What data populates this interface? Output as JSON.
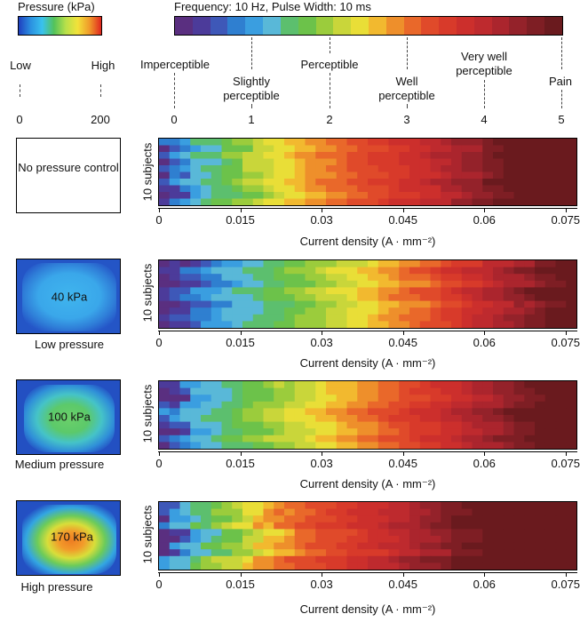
{
  "pressure_legend": {
    "title": "Pressure (kPa)",
    "low_label": "Low",
    "high_label": "High",
    "min_value": "0",
    "max_value": "200",
    "gradient": [
      "#1f3fbf",
      "#2b8fe0",
      "#39c2ee",
      "#54c25a",
      "#b8e04a",
      "#f2e23a",
      "#f09a2a",
      "#e0261f"
    ]
  },
  "perception_legend": {
    "title": "Frequency: 10 Hz, Pulse Width: 10 ms",
    "levels": [
      {
        "label": "Imperceptible",
        "value": "0"
      },
      {
        "label": "Slightly perceptible",
        "value": "1"
      },
      {
        "label": "Perceptible",
        "value": "2"
      },
      {
        "label": "Well perceptible",
        "value": "3"
      },
      {
        "label": "Very well perceptible",
        "value": "4"
      },
      {
        "label": "Pain",
        "value": "5"
      }
    ],
    "scale_colors": [
      "#5a2f80",
      "#4c3b9a",
      "#3e58b8",
      "#2f7fd0",
      "#3a9ee0",
      "#59b8d8",
      "#5cbf6e",
      "#6cc24a",
      "#9bcc3c",
      "#c9d63a",
      "#e9de37",
      "#f2b92f",
      "#ee8f2b",
      "#e9682a",
      "#e04a2a",
      "#d83a2a",
      "#cc2f2c",
      "#be2a2e",
      "#ab252d",
      "#94222a",
      "#7e1e24",
      "#6a1a1e"
    ]
  },
  "panels": [
    {
      "condition_label": "No pressure control",
      "pressure_value": null
    },
    {
      "condition_label": "Low pressure",
      "pressure_value": "40 kPa"
    },
    {
      "condition_label": "Medium pressure",
      "pressure_value": "100 kPa"
    },
    {
      "condition_label": "High pressure",
      "pressure_value": "170 kPa"
    }
  ],
  "chart_data": [
    {
      "type": "heatmap",
      "title": "No pressure control",
      "xlabel": "Current density (A · mm⁻²)",
      "ylabel": "10 subjects",
      "x_ticks": [
        "0",
        "0.015",
        "0.03",
        "0.045",
        "0.06",
        "0.075"
      ],
      "xlim": [
        0,
        0.077
      ],
      "rows": 10,
      "perception_thresholds_per_level": {
        "1": 0.006,
        "2": 0.018,
        "3": 0.032,
        "4": 0.052,
        "5": 0.065
      }
    },
    {
      "type": "heatmap",
      "title": "Low pressure",
      "xlabel": "Current density (A · mm⁻²)",
      "ylabel": "10 subjects",
      "x_ticks": [
        "0",
        "0.015",
        "0.03",
        "0.045",
        "0.06",
        "0.075"
      ],
      "xlim": [
        0,
        0.077
      ],
      "rows": 10,
      "perception_thresholds_per_level": {
        "1": 0.011,
        "2": 0.03,
        "3": 0.046,
        "4": 0.06,
        "5": 0.073
      }
    },
    {
      "type": "heatmap",
      "title": "Medium pressure",
      "xlabel": "Current density (A · mm⁻²)",
      "ylabel": "10 subjects",
      "x_ticks": [
        "0",
        "0.015",
        "0.03",
        "0.045",
        "0.06",
        "0.075"
      ],
      "xlim": [
        0,
        0.077
      ],
      "rows": 10,
      "perception_thresholds_per_level": {
        "1": 0.005,
        "2": 0.022,
        "3": 0.039,
        "4": 0.055,
        "5": 0.07
      }
    },
    {
      "type": "heatmap",
      "title": "High pressure",
      "xlabel": "Current density (A · mm⁻²)",
      "ylabel": "10 subjects",
      "x_ticks": [
        "0",
        "0.015",
        "0.03",
        "0.045",
        "0.06",
        "0.075"
      ],
      "xlim": [
        0,
        0.077
      ],
      "rows": 10,
      "perception_thresholds_per_level": {
        "1": 0.004,
        "2": 0.014,
        "3": 0.024,
        "4": 0.043,
        "5": 0.058
      }
    }
  ]
}
